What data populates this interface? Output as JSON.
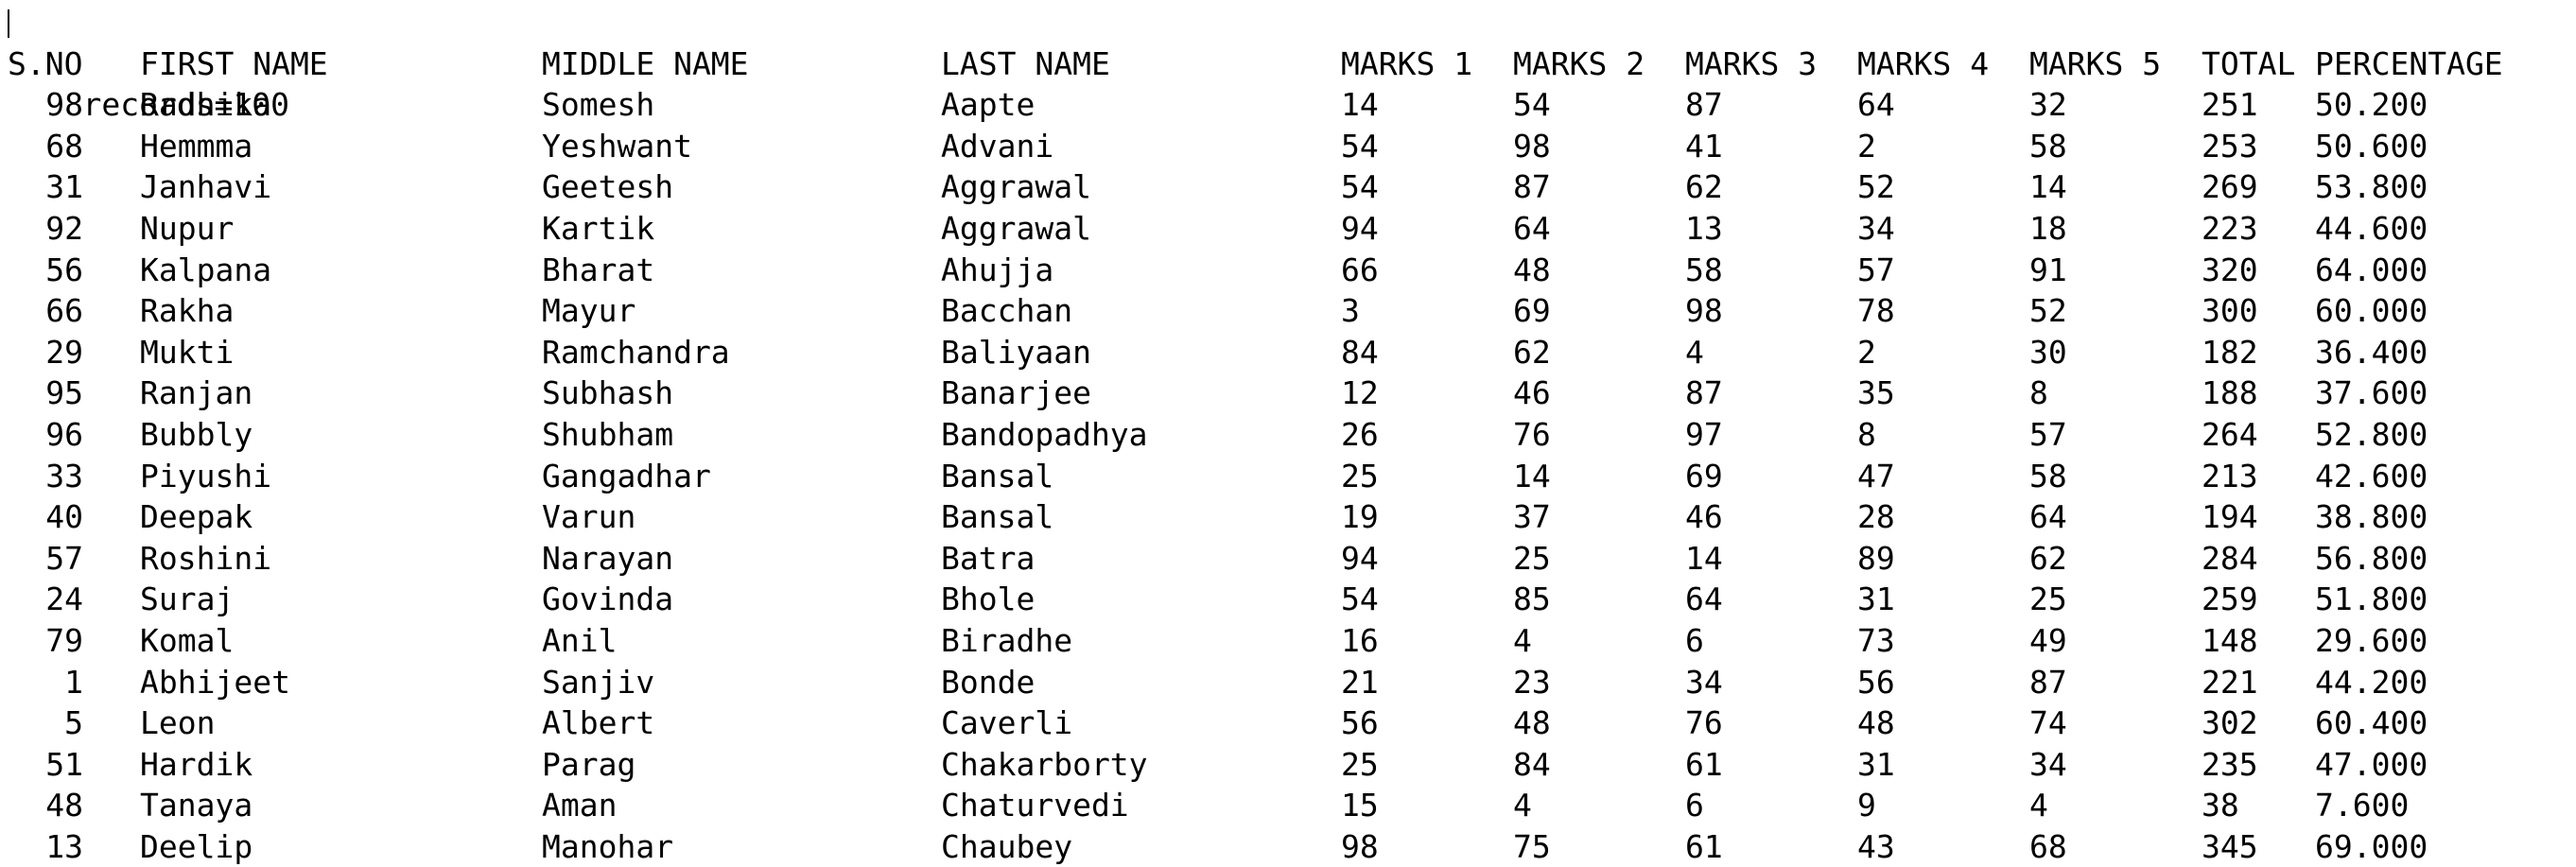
{
  "records_line": "records=100",
  "columns": [
    "S.NO",
    "FIRST NAME",
    "MIDDLE NAME",
    "LAST NAME",
    "MARKS 1",
    "MARKS 2",
    "MARKS 3",
    "MARKS 4",
    "MARKS 5",
    "TOTAL",
    "PERCENTAGE"
  ],
  "rows": [
    [
      "98",
      "Radhika",
      "Somesh",
      "Aapte",
      "14",
      "54",
      "87",
      "64",
      "32",
      "251",
      "50.200"
    ],
    [
      "68",
      "Hemmma",
      "Yeshwant",
      "Advani",
      "54",
      "98",
      "41",
      "2",
      "58",
      "253",
      "50.600"
    ],
    [
      "31",
      "Janhavi",
      "Geetesh",
      "Aggrawal",
      "54",
      "87",
      "62",
      "52",
      "14",
      "269",
      "53.800"
    ],
    [
      "92",
      "Nupur",
      "Kartik",
      "Aggrawal",
      "94",
      "64",
      "13",
      "34",
      "18",
      "223",
      "44.600"
    ],
    [
      "56",
      "Kalpana",
      "Bharat",
      "Ahujja",
      "66",
      "48",
      "58",
      "57",
      "91",
      "320",
      "64.000"
    ],
    [
      "66",
      "Rakha",
      "Mayur",
      "Bacchan",
      "3",
      "69",
      "98",
      "78",
      "52",
      "300",
      "60.000"
    ],
    [
      "29",
      "Mukti",
      "Ramchandra",
      "Baliyaan",
      "84",
      "62",
      "4",
      "2",
      "30",
      "182",
      "36.400"
    ],
    [
      "95",
      "Ranjan",
      "Subhash",
      "Banarjee",
      "12",
      "46",
      "87",
      "35",
      "8",
      "188",
      "37.600"
    ],
    [
      "96",
      "Bubbly",
      "Shubham",
      "Bandopadhya",
      "26",
      "76",
      "97",
      "8",
      "57",
      "264",
      "52.800"
    ],
    [
      "33",
      "Piyushi",
      "Gangadhar",
      "Bansal",
      "25",
      "14",
      "69",
      "47",
      "58",
      "213",
      "42.600"
    ],
    [
      "40",
      "Deepak",
      "Varun",
      "Bansal",
      "19",
      "37",
      "46",
      "28",
      "64",
      "194",
      "38.800"
    ],
    [
      "57",
      "Roshini",
      "Narayan",
      "Batra",
      "94",
      "25",
      "14",
      "89",
      "62",
      "284",
      "56.800"
    ],
    [
      "24",
      "Suraj",
      "Govinda",
      "Bhole",
      "54",
      "85",
      "64",
      "31",
      "25",
      "259",
      "51.800"
    ],
    [
      "79",
      "Komal",
      "Anil",
      "Biradhe",
      "16",
      "4",
      "6",
      "73",
      "49",
      "148",
      "29.600"
    ],
    [
      "1",
      "Abhijeet",
      "Sanjiv",
      "Bonde",
      "21",
      "23",
      "34",
      "56",
      "87",
      "221",
      "44.200"
    ],
    [
      "5",
      "Leon",
      "Albert",
      "Caverli",
      "56",
      "48",
      "76",
      "48",
      "74",
      "302",
      "60.400"
    ],
    [
      "51",
      "Hardik",
      "Parag",
      "Chakarborty",
      "25",
      "84",
      "61",
      "31",
      "34",
      "235",
      "47.000"
    ],
    [
      "48",
      "Tanaya",
      "Aman",
      "Chaturvedi",
      "15",
      "4",
      "6",
      "9",
      "4",
      "38",
      "7.600"
    ],
    [
      "13",
      "Deelip",
      "Manohar",
      "Chaubey",
      "98",
      "75",
      "61",
      "43",
      "68",
      "345",
      "69.000"
    ]
  ]
}
